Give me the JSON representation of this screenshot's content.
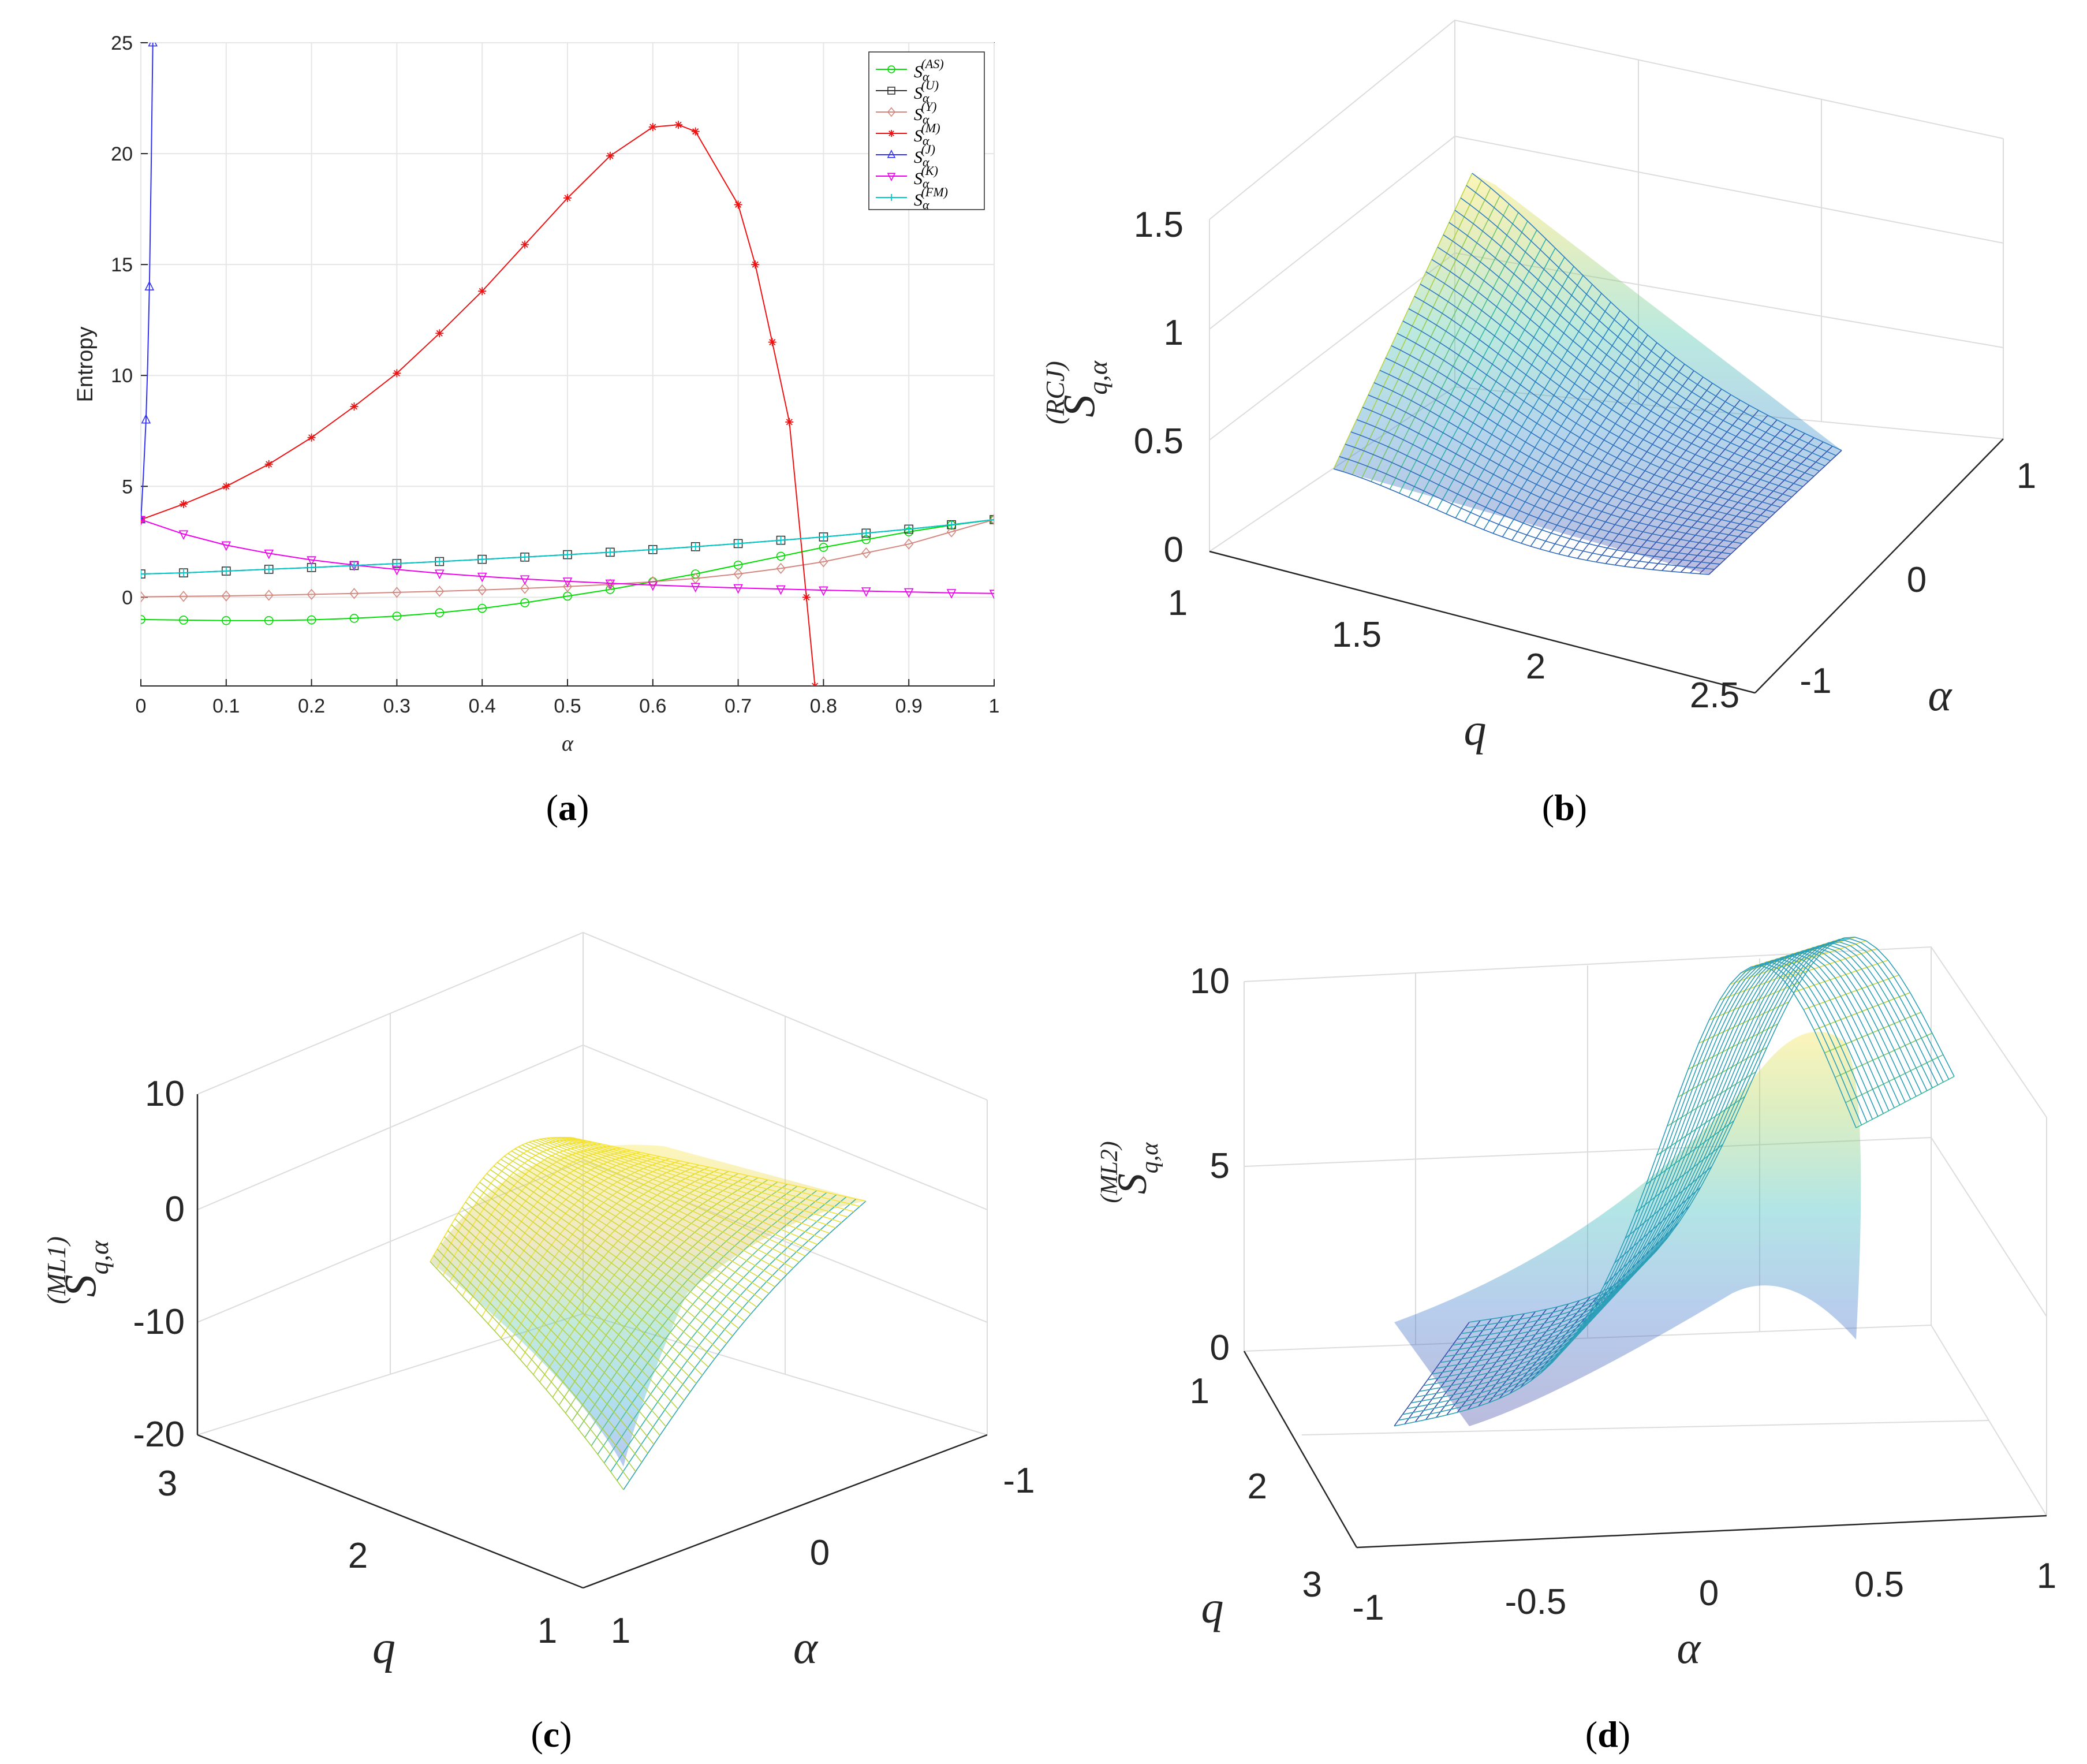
{
  "panel_captions": {
    "a": {
      "open": "(",
      "letter": "a",
      "close": ")"
    },
    "b": {
      "open": "(",
      "letter": "b",
      "close": ")"
    },
    "c": {
      "open": "(",
      "letter": "c",
      "close": ")"
    },
    "d": {
      "open": "(",
      "letter": "d",
      "close": ")"
    }
  },
  "chart_data": [
    {
      "panel": "a",
      "type": "line",
      "xlabel": "α",
      "ylabel": "Entropy",
      "xlim": [
        0,
        1
      ],
      "ylim": [
        -4,
        25
      ],
      "grid": true,
      "legend_position": "top-right",
      "x_ticks": [
        "0",
        "0.1",
        "0.2",
        "0.3",
        "0.4",
        "0.5",
        "0.6",
        "0.7",
        "0.8",
        "0.9",
        "1"
      ],
      "y_ticks": [
        "0",
        "5",
        "10",
        "15",
        "20",
        "25"
      ],
      "series": [
        {
          "name": "S_α^(AS)",
          "label_base": "S",
          "label_sub": "α",
          "label_sup": "(AS)",
          "color": "#00dd00",
          "marker": "circle",
          "x": [
            0,
            0.05,
            0.1,
            0.15,
            0.2,
            0.25,
            0.3,
            0.35,
            0.4,
            0.45,
            0.5,
            0.55,
            0.6,
            0.65,
            0.7,
            0.75,
            0.8,
            0.85,
            0.9,
            0.95,
            1
          ],
          "y": [
            -1.0,
            -1.03,
            -1.05,
            -1.05,
            -1.02,
            -0.95,
            -0.85,
            -0.7,
            -0.5,
            -0.25,
            0.05,
            0.35,
            0.7,
            1.05,
            1.45,
            1.85,
            2.25,
            2.6,
            2.95,
            3.25,
            3.5
          ]
        },
        {
          "name": "S_α^(U)",
          "label_base": "S",
          "label_sub": "α",
          "label_sup": "(U)",
          "color": "#333333",
          "marker": "square",
          "x": [
            0,
            0.05,
            0.1,
            0.15,
            0.2,
            0.25,
            0.3,
            0.35,
            0.4,
            0.45,
            0.5,
            0.55,
            0.6,
            0.65,
            0.7,
            0.75,
            0.8,
            0.85,
            0.9,
            0.95,
            1
          ],
          "y": [
            1.05,
            1.1,
            1.18,
            1.26,
            1.34,
            1.43,
            1.52,
            1.61,
            1.71,
            1.81,
            1.92,
            2.03,
            2.15,
            2.28,
            2.42,
            2.57,
            2.72,
            2.89,
            3.07,
            3.27,
            3.5
          ]
        },
        {
          "name": "S_α^(Y)",
          "label_base": "S",
          "label_sub": "α",
          "label_sup": "(Y)",
          "color": "#d4877f",
          "marker": "diamond",
          "x": [
            0,
            0.05,
            0.1,
            0.15,
            0.2,
            0.25,
            0.3,
            0.35,
            0.4,
            0.45,
            0.5,
            0.55,
            0.6,
            0.65,
            0.7,
            0.75,
            0.8,
            0.85,
            0.9,
            0.95,
            1
          ],
          "y": [
            0.02,
            0.04,
            0.06,
            0.09,
            0.13,
            0.17,
            0.22,
            0.27,
            0.33,
            0.4,
            0.48,
            0.58,
            0.7,
            0.85,
            1.05,
            1.3,
            1.6,
            2.0,
            2.4,
            2.95,
            3.5
          ]
        },
        {
          "name": "S_α^(M)",
          "label_base": "S",
          "label_sub": "α",
          "label_sup": "(M)",
          "color": "#ee1111",
          "marker": "star",
          "x": [
            0,
            0.05,
            0.1,
            0.15,
            0.2,
            0.25,
            0.3,
            0.35,
            0.4,
            0.45,
            0.5,
            0.55,
            0.6,
            0.63,
            0.65,
            0.7,
            0.72,
            0.74,
            0.76,
            0.78,
            0.79
          ],
          "y": [
            3.5,
            4.2,
            5.0,
            6.0,
            7.2,
            8.6,
            10.1,
            11.9,
            13.8,
            15.9,
            18.0,
            19.9,
            21.2,
            21.3,
            21.0,
            17.7,
            15.0,
            11.5,
            7.9,
            0.0,
            -4.0
          ]
        },
        {
          "name": "S_α^(J)",
          "label_base": "S",
          "label_sub": "α",
          "label_sup": "(J)",
          "color": "#3333ee",
          "marker": "triangle-up",
          "x": [
            0,
            0.003,
            0.006,
            0.008,
            0.01,
            0.012,
            0.014
          ],
          "y": [
            3.5,
            5.5,
            8.0,
            10.5,
            14.0,
            19.0,
            25.0
          ]
        },
        {
          "name": "S_α^(K)",
          "label_base": "S",
          "label_sub": "α",
          "label_sup": "(K)",
          "color": "#ee00ee",
          "marker": "triangle-down",
          "x": [
            0,
            0.05,
            0.1,
            0.15,
            0.2,
            0.25,
            0.3,
            0.35,
            0.4,
            0.45,
            0.5,
            0.55,
            0.6,
            0.65,
            0.7,
            0.75,
            0.8,
            0.85,
            0.9,
            0.95,
            1
          ],
          "y": [
            3.5,
            2.85,
            2.35,
            1.98,
            1.68,
            1.45,
            1.25,
            1.08,
            0.94,
            0.82,
            0.72,
            0.63,
            0.55,
            0.48,
            0.42,
            0.37,
            0.32,
            0.28,
            0.24,
            0.2,
            0.17
          ]
        },
        {
          "name": "S_α^(FM)",
          "label_base": "S",
          "label_sub": "α",
          "label_sup": "(FM)",
          "color": "#00cccc",
          "marker": "plus",
          "x": [
            0,
            0.05,
            0.1,
            0.15,
            0.2,
            0.25,
            0.3,
            0.35,
            0.4,
            0.45,
            0.5,
            0.55,
            0.6,
            0.65,
            0.7,
            0.75,
            0.8,
            0.85,
            0.9,
            0.95,
            1
          ],
          "y": [
            1.05,
            1.1,
            1.18,
            1.26,
            1.34,
            1.43,
            1.52,
            1.61,
            1.71,
            1.81,
            1.92,
            2.03,
            2.15,
            2.28,
            2.42,
            2.57,
            2.72,
            2.89,
            3.07,
            3.27,
            3.5
          ]
        }
      ]
    },
    {
      "panel": "b",
      "type": "surface",
      "zlabel": {
        "base": "S",
        "sub": "q,α",
        "sup": "(RCJ)"
      },
      "xlabel": "q",
      "ylabel": "α",
      "x_ticks": [
        "1",
        "1.5",
        "2",
        "2.5"
      ],
      "y_ticks": [
        "-1",
        "0",
        "1"
      ],
      "z_ticks": [
        "0",
        "0.5",
        "1",
        "1.5"
      ],
      "xlim": [
        1,
        2.5
      ],
      "ylim": [
        -1,
        1
      ],
      "zlim": [
        0,
        1.5
      ],
      "surface_corners": {
        "q_min_alpha_min": 0.35,
        "q_min_alpha_max": 1.65,
        "q_max_alpha_min": 0.0,
        "q_max_alpha_max": 0.08
      },
      "colormap": "parula"
    },
    {
      "panel": "c",
      "type": "surface",
      "zlabel": {
        "base": "S",
        "sub": "q,α",
        "sup": "(ML1)"
      },
      "xlabel": "q",
      "ylabel": "α",
      "x_ticks": [
        "1",
        "2",
        "3"
      ],
      "y_ticks": [
        "1",
        "0",
        "-1"
      ],
      "z_ticks": [
        "-20",
        "-10",
        "0",
        "10"
      ],
      "xlim": [
        1,
        3
      ],
      "ylim": [
        -1,
        1
      ],
      "zlim": [
        -20,
        10
      ],
      "surface_corners": {
        "q_max_alpha_max": -5,
        "q_max_alpha_min": 0,
        "q_min_alpha_max": -20,
        "q_min_alpha_min": 0
      },
      "colormap": "parula"
    },
    {
      "panel": "d",
      "type": "surface",
      "zlabel": {
        "base": "S",
        "sub": "q,α",
        "sup": "(ML2)"
      },
      "xlabel": "α",
      "ylabel": "q",
      "x_ticks": [
        "-1",
        "-0.5",
        "0",
        "0.5",
        "1"
      ],
      "y_ticks": [
        "1",
        "2",
        "3"
      ],
      "z_ticks": [
        "0",
        "5",
        "10"
      ],
      "xlim": [
        -1,
        1
      ],
      "ylim": [
        1,
        3
      ],
      "zlim": [
        0,
        10
      ],
      "peak": {
        "alpha": 0.5,
        "q": 1,
        "value": 8.1
      },
      "colormap": "parula"
    }
  ]
}
